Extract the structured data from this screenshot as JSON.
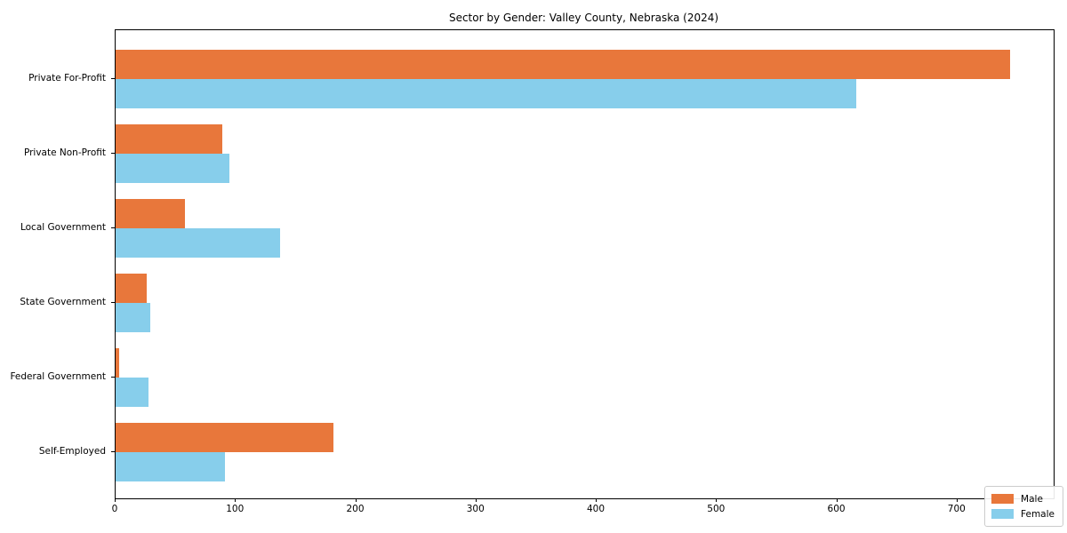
{
  "chart_data": {
    "type": "bar",
    "orientation": "horizontal",
    "title": "Sector by Gender: Valley County, Nebraska (2024)",
    "categories": [
      "Private For-Profit",
      "Private Non-Profit",
      "Local Government",
      "State Government",
      "Federal Government",
      "Self-Employed"
    ],
    "series": [
      {
        "name": "Male",
        "color": "#e8773b",
        "values": [
          744,
          89,
          58,
          26,
          3,
          181
        ]
      },
      {
        "name": "Female",
        "color": "#87ceeb",
        "values": [
          616,
          95,
          137,
          29,
          27,
          91
        ]
      }
    ],
    "xlabel": "",
    "ylabel": "",
    "xlim": [
      0,
      780
    ],
    "xticks": [
      0,
      100,
      200,
      300,
      400,
      500,
      600,
      700
    ],
    "grid": false,
    "legend_position": "lower right",
    "frame_color": "#000000",
    "background_color": "#ffffff"
  }
}
